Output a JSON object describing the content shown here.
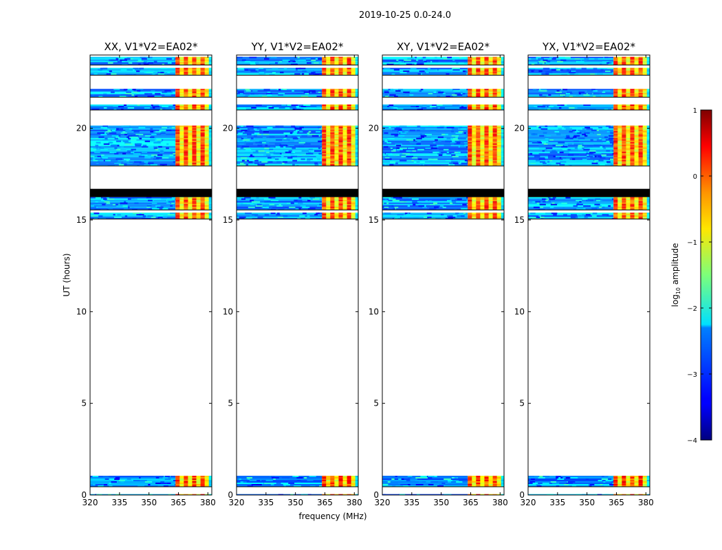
{
  "figure": {
    "suptitle": "2019-10-25 0.0-24.0",
    "xlabel": "frequency (MHz)",
    "ylabel": "UT (hours)",
    "colorbar_label_base": "log",
    "colorbar_label_sub": "10",
    "colorbar_label_rest": " amplitude"
  },
  "chart_data": {
    "type": "heatmap",
    "title": "2019-10-25 0.0-24.0",
    "xlabel": "frequency (MHz)",
    "ylabel": "UT (hours)",
    "xlim": [
      320,
      382
    ],
    "ylim": [
      0,
      24
    ],
    "x_ticks": [
      320,
      335,
      350,
      365,
      380
    ],
    "y_ticks": [
      0,
      5,
      10,
      15,
      20
    ],
    "colormap": "jet",
    "colorbar": {
      "label": "log10 amplitude",
      "range": [
        -4,
        1
      ],
      "ticks": [
        1,
        0,
        -1,
        -2,
        -3,
        -4
      ],
      "tick_labels": [
        "1",
        "0",
        "−1",
        "−2",
        "−3",
        "−4"
      ]
    },
    "rfi_band_mhz": [
      363.5,
      380.5
    ],
    "data_time_blocks_ut": [
      [
        0.0,
        0.05
      ],
      [
        0.45,
        1.05
      ],
      [
        15.05,
        15.4
      ],
      [
        15.55,
        16.25
      ],
      [
        17.95,
        20.15
      ],
      [
        21.0,
        21.3
      ],
      [
        21.7,
        22.15
      ],
      [
        22.9,
        23.3
      ],
      [
        23.45,
        23.9
      ]
    ],
    "flagged_band_ut": [
      16.25,
      16.7
    ],
    "panels": [
      {
        "title": "XX, V1*V2=EA02*"
      },
      {
        "title": "YY, V1*V2=EA02*"
      },
      {
        "title": "XY, V1*V2=EA02*"
      },
      {
        "title": "YX, V1*V2=EA02*"
      }
    ]
  }
}
